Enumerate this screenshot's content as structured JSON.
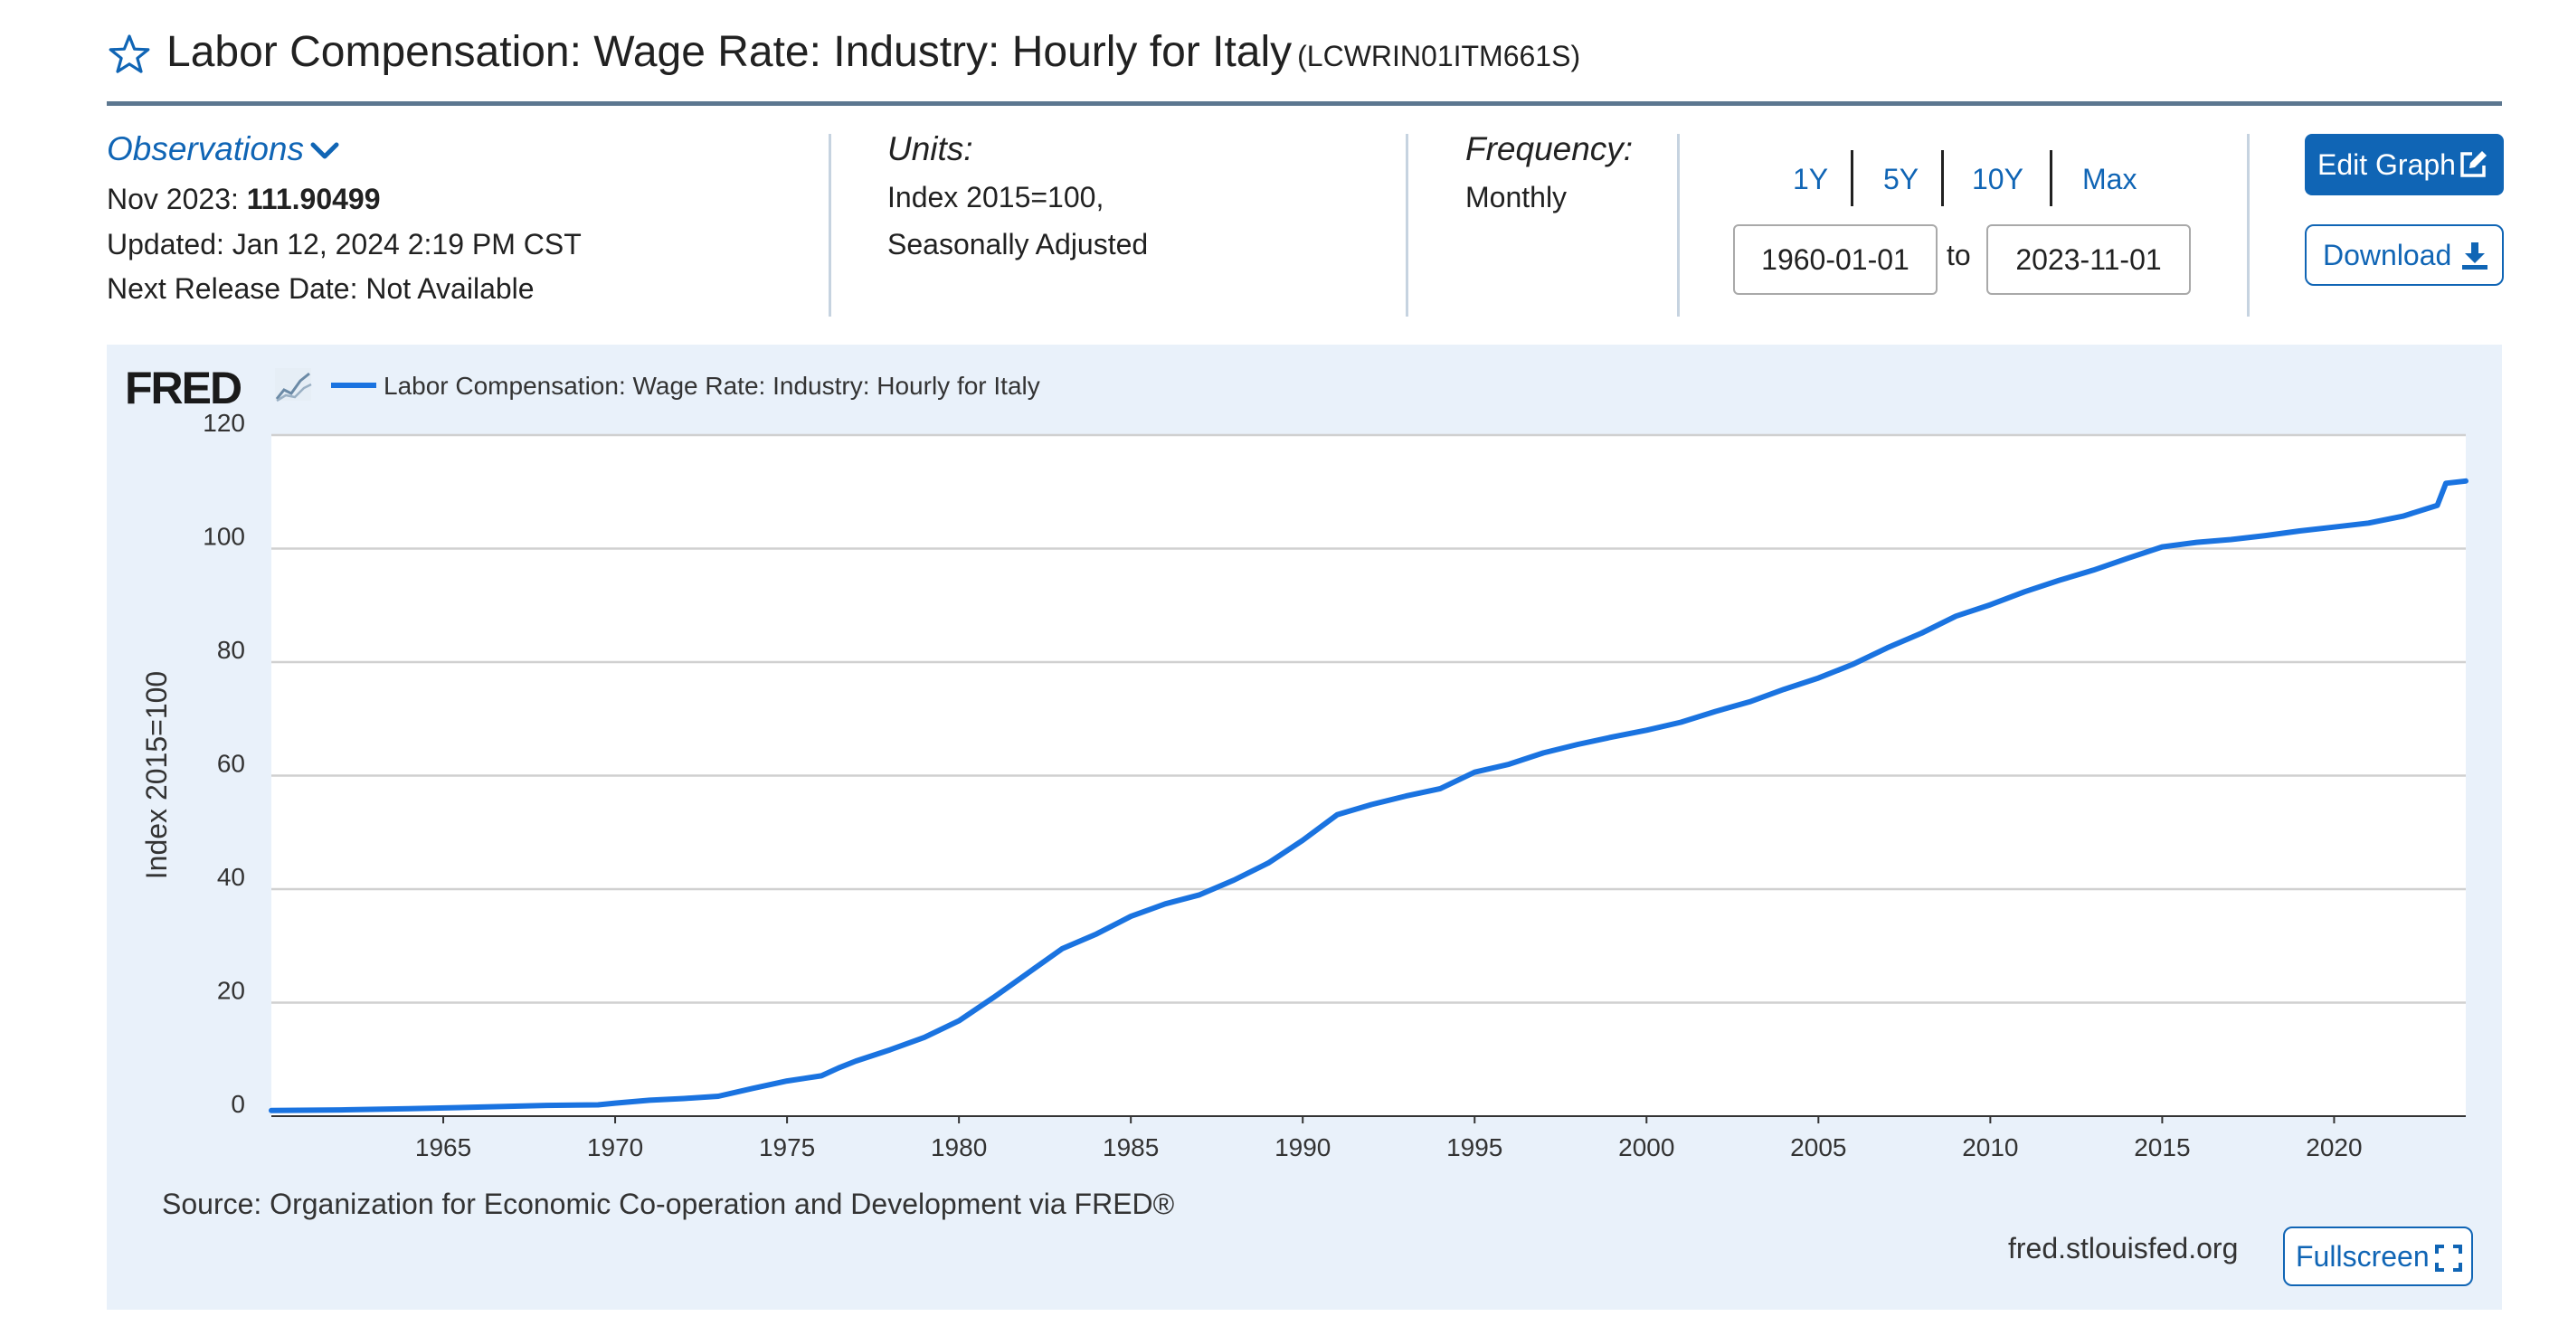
{
  "header": {
    "title": "Labor Compensation: Wage Rate: Industry: Hourly for Italy",
    "series_id": "(LCWRIN01ITM661S)"
  },
  "observations": {
    "toggle_label": "Observations",
    "period_label": "Nov 2023:",
    "value": "111.90499",
    "updated": "Updated: Jan 12, 2024 2:19 PM CST",
    "next_release": "Next Release Date: Not Available"
  },
  "units": {
    "label": "Units:",
    "line1": "Index 2015=100,",
    "line2": "Seasonally Adjusted"
  },
  "frequency": {
    "label": "Frequency:",
    "value": "Monthly"
  },
  "range": {
    "buttons": [
      "1Y",
      "5Y",
      "10Y",
      "Max"
    ],
    "start": "1960-01-01",
    "to_label": "to",
    "end": "2023-11-01"
  },
  "actions": {
    "edit_graph": "Edit Graph",
    "download": "Download"
  },
  "graph": {
    "fred_logo": "FRED",
    "source": "Source: Organization for Economic Co-operation and Development via FRED®",
    "site": "fred.stlouisfed.org",
    "fullscreen": "Fullscreen"
  },
  "colors": {
    "accent": "#1065b5",
    "line": "#1a73e0",
    "panel_bg": "#e9f1fa"
  },
  "chart_data": {
    "type": "line",
    "title": "",
    "legend": "Labor Compensation: Wage Rate: Industry: Hourly for Italy",
    "legend_position": "top-left",
    "xlabel": "",
    "ylabel": "Index 2015=100",
    "xlim": [
      1960.0,
      2023.83
    ],
    "ylim": [
      0,
      120
    ],
    "grid": true,
    "x_ticks": [
      1965,
      1970,
      1975,
      1980,
      1985,
      1990,
      1995,
      2000,
      2005,
      2010,
      2015,
      2020
    ],
    "y_ticks": [
      0,
      20,
      40,
      60,
      80,
      100,
      120
    ],
    "series": [
      {
        "name": "Labor Compensation: Wage Rate: Industry: Hourly for Italy",
        "x": [
          1960.0,
          1962.0,
          1964.0,
          1966.0,
          1968.0,
          1969.5,
          1970.0,
          1971.0,
          1972.0,
          1973.0,
          1974.0,
          1975.0,
          1976.0,
          1976.5,
          1977.0,
          1978.0,
          1979.0,
          1980.0,
          1981.0,
          1982.0,
          1983.0,
          1984.0,
          1985.0,
          1986.0,
          1987.0,
          1988.0,
          1989.0,
          1990.0,
          1991.0,
          1992.0,
          1993.0,
          1994.0,
          1995.0,
          1996.0,
          1997.0,
          1998.0,
          1999.0,
          2000.0,
          2001.0,
          2002.0,
          2003.0,
          2004.0,
          2005.0,
          2006.0,
          2007.0,
          2008.0,
          2009.0,
          2010.0,
          2011.0,
          2012.0,
          2013.0,
          2014.0,
          2015.0,
          2016.0,
          2017.0,
          2018.0,
          2019.0,
          2020.0,
          2021.0,
          2022.0,
          2023.0,
          2023.25,
          2023.83
        ],
        "y": [
          1.0,
          1.1,
          1.3,
          1.6,
          1.9,
          2.0,
          2.3,
          2.8,
          3.1,
          3.5,
          4.9,
          6.2,
          7.1,
          8.5,
          9.7,
          11.7,
          13.9,
          16.8,
          20.9,
          25.2,
          29.5,
          32.1,
          35.2,
          37.4,
          39.0,
          41.6,
          44.6,
          48.6,
          53.1,
          54.9,
          56.4,
          57.7,
          60.6,
          62.0,
          64.0,
          65.5,
          66.8,
          68.0,
          69.4,
          71.3,
          73.0,
          75.2,
          77.2,
          79.6,
          82.5,
          85.1,
          88.1,
          90.1,
          92.4,
          94.4,
          96.2,
          98.3,
          100.3,
          101.1,
          101.6,
          102.3,
          103.1,
          103.8,
          104.5,
          105.7,
          107.6,
          111.5,
          111.9
        ]
      }
    ]
  }
}
